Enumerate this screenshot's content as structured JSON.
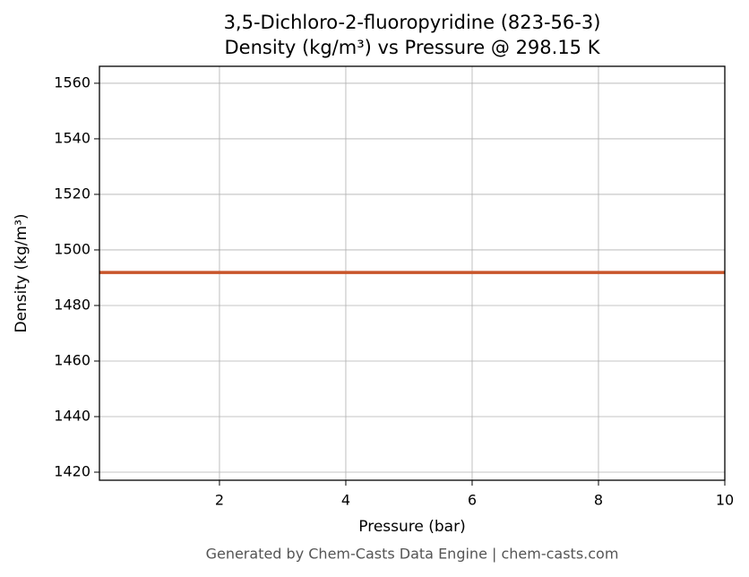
{
  "chart_data": {
    "type": "line",
    "title": "3,5-Dichloro-2-fluoropyridine (823-56-3)",
    "subtitle": "Density (kg/m³) vs Pressure @ 298.15 K",
    "x_label": "Pressure (bar)",
    "y_label": "Density (kg/m³)",
    "footer": "Generated by Chem-Casts Data Engine | chem-casts.com",
    "x": [
      0.1,
      10
    ],
    "series": [
      {
        "name": "Density",
        "color": "#c8552a",
        "values": [
          1491.9,
          1491.9
        ]
      }
    ],
    "xlim": [
      0.1,
      10
    ],
    "xticks": [
      2,
      4,
      6,
      8,
      10
    ],
    "ylim": [
      1417.1,
      1566.1
    ],
    "yticks": [
      1420,
      1440,
      1460,
      1480,
      1500,
      1520,
      1540,
      1560
    ],
    "grid": true
  }
}
